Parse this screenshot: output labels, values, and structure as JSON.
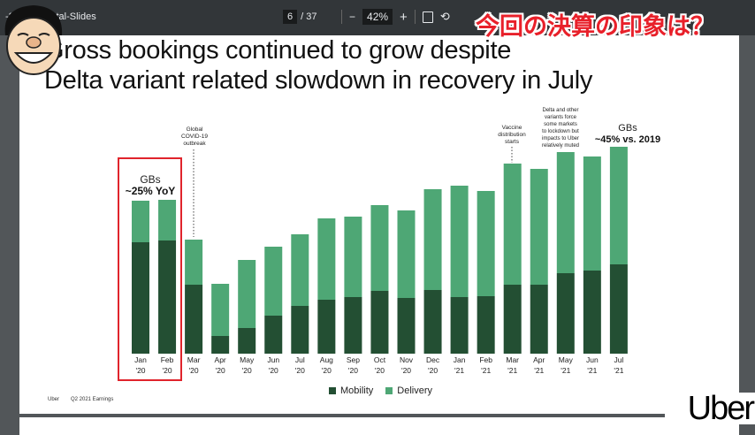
{
  "toolbar": {
    "doc_title": "-202… mental-Slides",
    "current_page": "6",
    "total_pages": "/ 37",
    "zoom_out": "−",
    "zoom_level": "42%",
    "zoom_in": "+",
    "fit_icon": "fit-page-icon",
    "rotate_icon": "rotate-icon"
  },
  "overlay_caption": "今回の決算の印象は？",
  "slide": {
    "title_line1": "Gross bookings continued to grow despite",
    "title_line2": "Delta variant related slowdown in recovery in July",
    "footer_brand": "Uber",
    "footer_text": "Q2 2021 Earnings",
    "logo": "Uber"
  },
  "chart_data": {
    "type": "bar",
    "stacked": true,
    "categories": [
      "Jan '20",
      "Feb '20",
      "Mar '20",
      "Apr '20",
      "May '20",
      "Jun '20",
      "Jul '20",
      "Aug '20",
      "Sep '20",
      "Oct '20",
      "Nov '20",
      "Dec '20",
      "Jan '21",
      "Feb '21",
      "Mar '21",
      "Apr '21",
      "May '21",
      "Jun '21",
      "Jul '21"
    ],
    "category_months": [
      "Jan",
      "Feb",
      "Mar",
      "Apr",
      "May",
      "Jun",
      "Jul",
      "Aug",
      "Sep",
      "Oct",
      "Nov",
      "Dec",
      "Jan",
      "Feb",
      "Mar",
      "Apr",
      "May",
      "Jun",
      "Jul"
    ],
    "category_years": [
      "'20",
      "'20",
      "'20",
      "'20",
      "'20",
      "'20",
      "'20",
      "'20",
      "'20",
      "'20",
      "'20",
      "'20",
      "'21",
      "'21",
      "'21",
      "'21",
      "'21",
      "'21",
      "'21"
    ],
    "series": [
      {
        "name": "Mobility",
        "color": "#234f33",
        "values": [
          126,
          128,
          78,
          20,
          29,
          43,
          54,
          61,
          64,
          71,
          63,
          72,
          64,
          65,
          78,
          78,
          91,
          94,
          101
        ]
      },
      {
        "name": "Delivery",
        "color": "#4ea775",
        "values": [
          47,
          46,
          51,
          59,
          77,
          78,
          81,
          92,
          91,
          97,
          99,
          114,
          126,
          119,
          137,
          131,
          137,
          129,
          133
        ]
      }
    ],
    "ylim": [
      0,
      240
    ],
    "y_axis_shown": false,
    "grid": false,
    "legend_position": "bottom",
    "xlabel": "",
    "ylabel": "",
    "annotations": [
      {
        "at": "Jan '20 - Feb '20",
        "line1": "GBs",
        "line2": "~25% YoY",
        "highlight_box_color": "#e0242c"
      },
      {
        "at": "Mar '20",
        "text": [
          "Global",
          "COVID-19",
          "outbreak"
        ]
      },
      {
        "at": "Mar '21",
        "text": [
          "Vaccine",
          "distribution",
          "starts"
        ]
      },
      {
        "at": "May '21",
        "text": [
          "Delta and other",
          "variants force",
          "some markets",
          "to lockdown but",
          "impacts to Uber",
          "relatively muted"
        ]
      },
      {
        "at": "Jul '21",
        "line1": "GBs",
        "line2": "~45% vs. 2019"
      }
    ]
  }
}
